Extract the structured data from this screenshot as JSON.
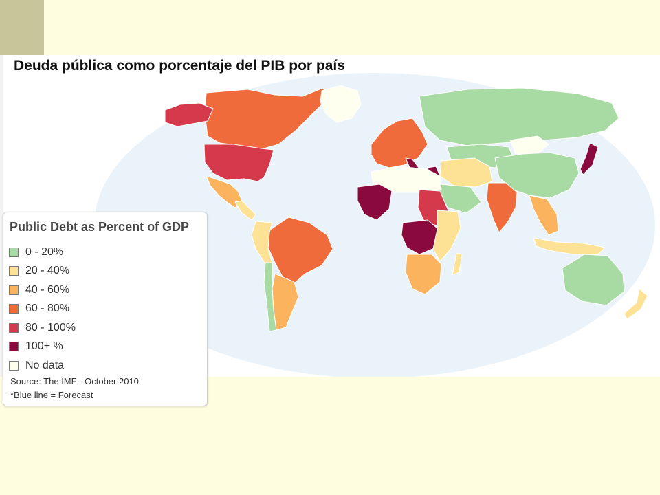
{
  "map": {
    "title": "Deuda pública como porcentaje del PIB por país",
    "ocean_color": "#eaf3f9",
    "border_color": "#ffffff",
    "regions": [
      {
        "name": "Canada",
        "bin": 3
      },
      {
        "name": "United States",
        "bin": 4
      },
      {
        "name": "Alaska",
        "bin": 4
      },
      {
        "name": "Greenland",
        "bin": 6
      },
      {
        "name": "Mexico",
        "bin": 2
      },
      {
        "name": "Central America",
        "bin": 1
      },
      {
        "name": "Brazil",
        "bin": 3
      },
      {
        "name": "Andean South America",
        "bin": 1
      },
      {
        "name": "Argentina",
        "bin": 2
      },
      {
        "name": "Chile",
        "bin": 0
      },
      {
        "name": "Western Europe",
        "bin": 3
      },
      {
        "name": "Italy",
        "bin": 5
      },
      {
        "name": "Greece",
        "bin": 5
      },
      {
        "name": "Russia",
        "bin": 0
      },
      {
        "name": "Central Asia",
        "bin": 0
      },
      {
        "name": "Mongolia",
        "bin": 6
      },
      {
        "name": "China",
        "bin": 0
      },
      {
        "name": "Japan",
        "bin": 5
      },
      {
        "name": "India",
        "bin": 3
      },
      {
        "name": "Southeast Asia",
        "bin": 2
      },
      {
        "name": "Indonesia",
        "bin": 1
      },
      {
        "name": "Australia",
        "bin": 0
      },
      {
        "name": "New Zealand",
        "bin": 1
      },
      {
        "name": "Middle East",
        "bin": 1
      },
      {
        "name": "Arabian Peninsula",
        "bin": 0
      },
      {
        "name": "North Africa",
        "bin": 6
      },
      {
        "name": "West Africa",
        "bin": 5
      },
      {
        "name": "Sudan",
        "bin": 4
      },
      {
        "name": "Congo",
        "bin": 5
      },
      {
        "name": "East Africa",
        "bin": 1
      },
      {
        "name": "Southern Africa",
        "bin": 2
      },
      {
        "name": "Madagascar",
        "bin": 1
      }
    ]
  },
  "legend": {
    "title": "Public Debt as Percent of GDP",
    "items": [
      {
        "label": "0 - 20%",
        "color": "#a8dba3"
      },
      {
        "label": "20 - 40%",
        "color": "#fde295"
      },
      {
        "label": "40 - 60%",
        "color": "#fbb35e"
      },
      {
        "label": "60 - 80%",
        "color": "#ef6b3c"
      },
      {
        "label": "80 - 100%",
        "color": "#d43a4b"
      },
      {
        "label": "100+ %",
        "color": "#8b0a3d"
      },
      {
        "label": "No data",
        "color": "#fffff0"
      }
    ],
    "source": "Source: The IMF - October 2010",
    "note": "*Blue line = Forecast"
  }
}
